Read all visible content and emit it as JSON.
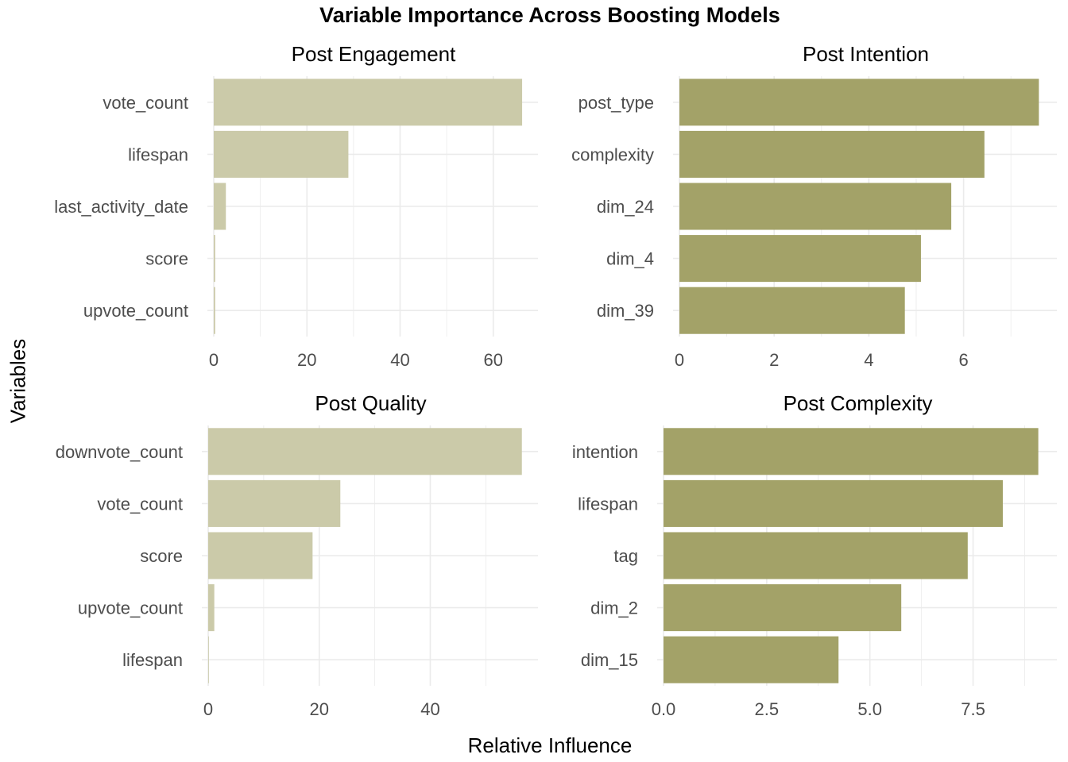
{
  "title": "Variable Importance Across Boosting Models",
  "xlabel": "Relative Influence",
  "ylabel": "Variables",
  "colors": {
    "light": "#cbcaa9",
    "dark": "#a3a268",
    "grid": "#ebebeb",
    "axis_text": "#4d4d4d"
  },
  "chart_data": [
    {
      "type": "bar",
      "orientation": "horizontal",
      "title": "Post Engagement",
      "categories": [
        "vote_count",
        "lifespan",
        "last_activity_date",
        "score",
        "upvote_count"
      ],
      "values": [
        66.2,
        28.9,
        2.6,
        0.3,
        0.3
      ],
      "xticks": [
        0,
        20,
        40,
        60
      ],
      "xlim": [
        0,
        69.6
      ],
      "color": "#cbcaa9"
    },
    {
      "type": "bar",
      "orientation": "horizontal",
      "title": "Post Intention",
      "categories": [
        "post_type",
        "complexity",
        "dim_24",
        "dim_4",
        "dim_39"
      ],
      "values": [
        7.59,
        6.44,
        5.74,
        5.1,
        4.76
      ],
      "xticks": [
        0,
        2,
        4,
        6
      ],
      "xlim": [
        0,
        7.97
      ],
      "color": "#a3a268"
    },
    {
      "type": "bar",
      "orientation": "horizontal",
      "title": "Post Quality",
      "categories": [
        "downvote_count",
        "vote_count",
        "score",
        "upvote_count",
        "lifespan"
      ],
      "values": [
        56.5,
        23.8,
        18.8,
        1.1,
        0.1
      ],
      "xticks": [
        0,
        20,
        40
      ],
      "xlim": [
        0,
        59.4
      ],
      "color": "#cbcaa9"
    },
    {
      "type": "bar",
      "orientation": "horizontal",
      "title": "Post Complexity",
      "categories": [
        "intention",
        "lifespan",
        "tag",
        "dim_2",
        "dim_15"
      ],
      "values": [
        9.08,
        8.22,
        7.37,
        5.76,
        4.24
      ],
      "xticks": [
        "0.0",
        "2.5",
        "5.0",
        "7.5"
      ],
      "xlim": [
        0,
        9.53
      ],
      "color": "#a3a268"
    }
  ]
}
